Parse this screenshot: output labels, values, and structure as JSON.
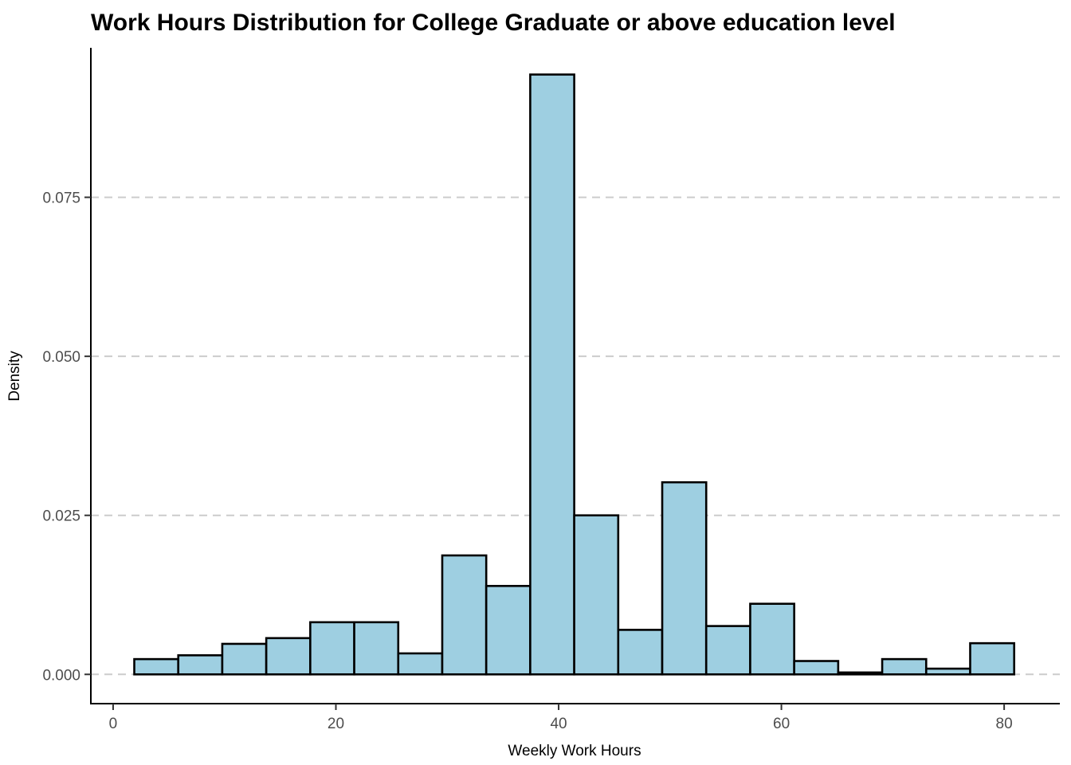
{
  "chart_data": {
    "type": "bar",
    "title": "Work Hours Distribution for College Graduate or above education level",
    "xlabel": "Weekly Work Hours",
    "ylabel": "Density",
    "xlim": [
      -2,
      85
    ],
    "ylim": [
      -0.0046,
      0.0985
    ],
    "x_ticks": [
      0,
      20,
      40,
      60,
      80
    ],
    "x_tick_labels": [
      "0",
      "20",
      "40",
      "60",
      "80"
    ],
    "y_ticks": [
      0.0,
      0.025,
      0.05,
      0.075
    ],
    "y_tick_labels": [
      "0.000",
      "0.025",
      "0.050",
      "0.075"
    ],
    "grid": "horizontal dashed",
    "bar_color": "#9ecfe1",
    "bar_edge_color": "#000000",
    "bins": [
      {
        "x0": 1.9,
        "x1": 5.85,
        "value": 0.0024
      },
      {
        "x0": 5.85,
        "x1": 9.8,
        "value": 0.003
      },
      {
        "x0": 9.8,
        "x1": 13.75,
        "value": 0.0048
      },
      {
        "x0": 13.75,
        "x1": 17.7,
        "value": 0.0057
      },
      {
        "x0": 17.7,
        "x1": 21.65,
        "value": 0.0082
      },
      {
        "x0": 21.65,
        "x1": 25.6,
        "value": 0.0082
      },
      {
        "x0": 25.6,
        "x1": 29.55,
        "value": 0.0033
      },
      {
        "x0": 29.55,
        "x1": 33.5,
        "value": 0.0187
      },
      {
        "x0": 33.5,
        "x1": 37.45,
        "value": 0.0139
      },
      {
        "x0": 37.45,
        "x1": 41.4,
        "value": 0.0943
      },
      {
        "x0": 41.4,
        "x1": 45.35,
        "value": 0.025
      },
      {
        "x0": 45.35,
        "x1": 49.3,
        "value": 0.007
      },
      {
        "x0": 49.3,
        "x1": 53.25,
        "value": 0.0302
      },
      {
        "x0": 53.25,
        "x1": 57.2,
        "value": 0.0076
      },
      {
        "x0": 57.2,
        "x1": 61.15,
        "value": 0.0111
      },
      {
        "x0": 61.15,
        "x1": 65.1,
        "value": 0.0021
      },
      {
        "x0": 65.1,
        "x1": 69.05,
        "value": 0.0003
      },
      {
        "x0": 69.05,
        "x1": 73.0,
        "value": 0.0024
      },
      {
        "x0": 73.0,
        "x1": 76.95,
        "value": 0.0009
      },
      {
        "x0": 76.95,
        "x1": 80.9,
        "value": 0.0049
      }
    ]
  }
}
